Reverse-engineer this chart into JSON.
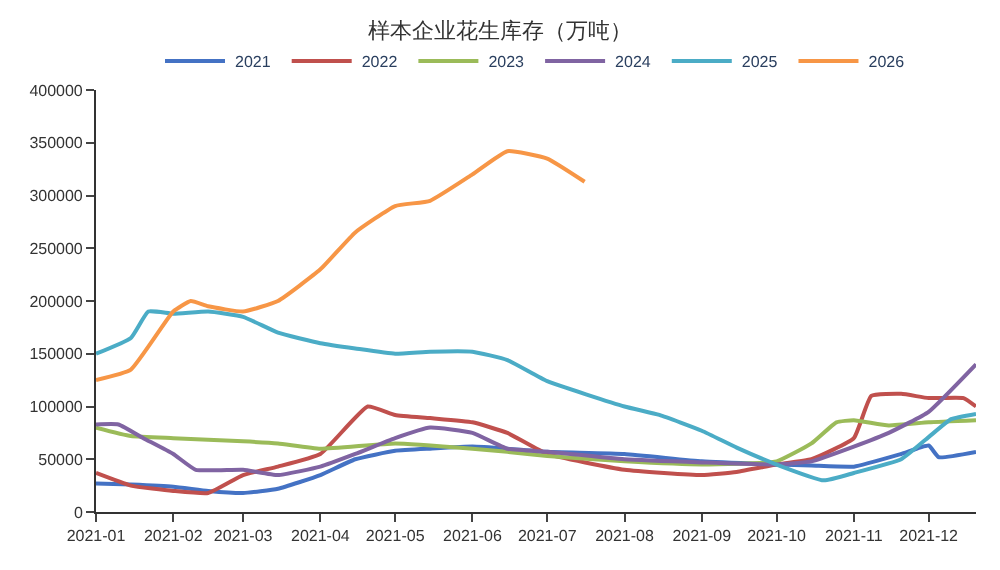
{
  "chart_data": {
    "type": "line",
    "title": "样本企业花生库存（万吨）",
    "xlim": [
      "2021-01-01",
      "2021-12-20"
    ],
    "xticks": [
      "2021-01",
      "2021-02",
      "2021-03",
      "2021-04",
      "2021-05",
      "2021-06",
      "2021-07",
      "2021-08",
      "2021-09",
      "2021-10",
      "2021-11",
      "2021-12"
    ],
    "ylim": [
      0,
      400000
    ],
    "yticks": [
      0,
      50000,
      100000,
      150000,
      200000,
      250000,
      300000,
      350000,
      400000
    ],
    "legend": "top",
    "marker": "none",
    "line_style": "solid",
    "series": [
      {
        "name": "2021",
        "color": "#4472c4",
        "x": [
          "2021-01-01",
          "2021-01-15",
          "2021-02-01",
          "2021-02-15",
          "2021-03-01",
          "2021-03-15",
          "2021-04-01",
          "2021-04-15",
          "2021-05-01",
          "2021-05-15",
          "2021-06-01",
          "2021-06-15",
          "2021-07-01",
          "2021-08-01",
          "2021-09-01",
          "2021-10-01",
          "2021-10-15",
          "2021-11-01",
          "2021-11-20",
          "2021-12-01",
          "2021-12-05",
          "2021-12-20"
        ],
        "values": [
          27000,
          26000,
          24000,
          20000,
          18000,
          22000,
          35000,
          50000,
          58000,
          60000,
          62000,
          60000,
          57000,
          55000,
          48000,
          45000,
          44000,
          43000,
          55000,
          63000,
          52000,
          57000
        ]
      },
      {
        "name": "2022",
        "color": "#c0504d",
        "x": [
          "2021-01-01",
          "2021-01-15",
          "2021-02-01",
          "2021-02-15",
          "2021-03-01",
          "2021-03-15",
          "2021-04-01",
          "2021-04-20",
          "2021-05-01",
          "2021-05-15",
          "2021-06-01",
          "2021-06-15",
          "2021-07-01",
          "2021-08-01",
          "2021-09-01",
          "2021-09-15",
          "2021-10-01",
          "2021-10-15",
          "2021-11-01",
          "2021-11-08",
          "2021-11-20",
          "2021-12-01",
          "2021-12-15",
          "2021-12-20"
        ],
        "values": [
          37000,
          25000,
          20000,
          18000,
          35000,
          43000,
          55000,
          100000,
          92000,
          89000,
          85000,
          75000,
          55000,
          40000,
          35000,
          38000,
          45000,
          50000,
          70000,
          110000,
          112000,
          108000,
          108000,
          100000
        ]
      },
      {
        "name": "2023",
        "color": "#9bbb59",
        "x": [
          "2021-01-01",
          "2021-01-15",
          "2021-02-01",
          "2021-03-01",
          "2021-03-15",
          "2021-04-01",
          "2021-05-01",
          "2021-06-01",
          "2021-06-15",
          "2021-07-01",
          "2021-08-01",
          "2021-09-01",
          "2021-10-01",
          "2021-10-15",
          "2021-10-25",
          "2021-11-01",
          "2021-11-15",
          "2021-12-01",
          "2021-12-20"
        ],
        "values": [
          80000,
          72000,
          70000,
          67000,
          65000,
          60000,
          65000,
          60000,
          57000,
          53000,
          48000,
          45000,
          48000,
          65000,
          85000,
          87000,
          82000,
          85000,
          87000
        ]
      },
      {
        "name": "2024",
        "color": "#8064a2",
        "x": [
          "2021-01-01",
          "2021-01-10",
          "2021-01-20",
          "2021-02-01",
          "2021-02-10",
          "2021-03-01",
          "2021-03-15",
          "2021-04-01",
          "2021-04-15",
          "2021-05-01",
          "2021-05-15",
          "2021-06-01",
          "2021-06-15",
          "2021-07-01",
          "2021-08-01",
          "2021-09-01",
          "2021-10-01",
          "2021-10-15",
          "2021-11-01",
          "2021-11-15",
          "2021-12-01",
          "2021-12-20"
        ],
        "values": [
          83000,
          83000,
          70000,
          55000,
          40000,
          40000,
          35000,
          43000,
          55000,
          70000,
          80000,
          75000,
          60000,
          57000,
          50000,
          47000,
          45000,
          48000,
          62000,
          75000,
          95000,
          140000
        ]
      },
      {
        "name": "2025",
        "color": "#4bacc6",
        "x": [
          "2021-01-01",
          "2021-01-15",
          "2021-01-22",
          "2021-02-01",
          "2021-02-15",
          "2021-03-01",
          "2021-03-15",
          "2021-04-01",
          "2021-04-15",
          "2021-05-01",
          "2021-05-15",
          "2021-06-01",
          "2021-06-15",
          "2021-07-01",
          "2021-08-01",
          "2021-08-15",
          "2021-09-01",
          "2021-09-15",
          "2021-10-01",
          "2021-10-20",
          "2021-11-01",
          "2021-11-20",
          "2021-12-01",
          "2021-12-10",
          "2021-12-20"
        ],
        "values": [
          150000,
          165000,
          190000,
          188000,
          190000,
          185000,
          170000,
          160000,
          155000,
          150000,
          152000,
          152000,
          144000,
          124000,
          100000,
          92000,
          77000,
          61000,
          45000,
          30000,
          37000,
          50000,
          71000,
          88000,
          93000
        ]
      },
      {
        "name": "2026",
        "color": "#f79646",
        "x": [
          "2021-01-01",
          "2021-01-15",
          "2021-02-01",
          "2021-02-08",
          "2021-02-15",
          "2021-03-01",
          "2021-03-15",
          "2021-04-01",
          "2021-04-15",
          "2021-05-01",
          "2021-05-15",
          "2021-06-01",
          "2021-06-15",
          "2021-07-01",
          "2021-07-16"
        ],
        "values": [
          125000,
          135000,
          190000,
          200000,
          195000,
          190000,
          200000,
          230000,
          265000,
          290000,
          295000,
          320000,
          342000,
          335000,
          313000
        ]
      }
    ]
  }
}
